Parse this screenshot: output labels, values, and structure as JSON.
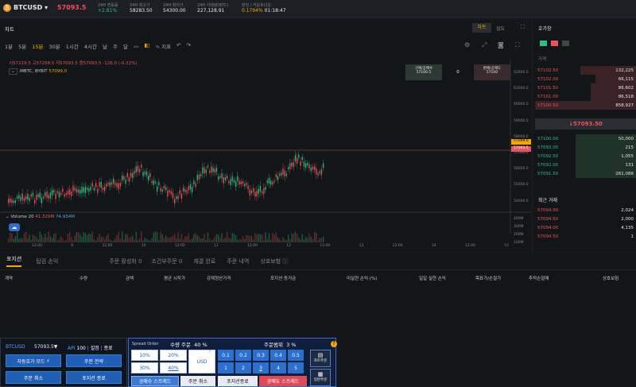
{
  "header": {
    "symbol": "BTCUSD",
    "price": "57093.5",
    "stats": [
      {
        "label": "24H 변동률",
        "value": "+2.81%"
      },
      {
        "label": "24H 최고가",
        "value": "58283.50"
      },
      {
        "label": "24H 최저가",
        "value": "54300.00"
      },
      {
        "label": "24H 거래량(BTC)",
        "value": "227,128.91"
      },
      {
        "label": "펀딩 / 카운트다운",
        "value": "0.1794%",
        "value2": "01:18:47"
      }
    ]
  },
  "chart_panel": {
    "title": "차트",
    "tabs": [
      "차트",
      "심도"
    ],
    "timeframes": [
      "1분",
      "5분",
      "15분",
      "30분",
      "1시간",
      "4시간",
      "날",
      "주",
      "달"
    ],
    "active_timeframe": "15분",
    "indicator_label": "지표",
    "ohlc": {
      "open": "시57219.5",
      "high": "고57258.5",
      "low": "저57093.5",
      "close": "종57093.5",
      "change": "-126.0 (-0.22%)"
    },
    "source": ".MBTC, BYBIT",
    "source_price": "57099.0",
    "buy_box": {
      "label": "구매/공매수",
      "value": "57100.5"
    },
    "mid_value": "0",
    "sell_box": {
      "label": "판매/공매도",
      "value": "57100"
    },
    "volume_label": "Volume 20",
    "volume_v1": "41.329M",
    "volume_v2": "74.934M",
    "price_ticks": [
      "62000.0",
      "61000.0",
      "60000.0",
      "59000.0",
      "58000.0",
      "57000.0",
      "56000.0",
      "55000.0",
      "54000.0"
    ],
    "current_price_tag": "57093.5",
    "mark_price_tag": "57099.0",
    "vol_ticks": [
      "400M",
      "300M",
      "200M",
      "100M"
    ],
    "time_ticks": [
      "12:00",
      "9",
      "12:00",
      "10",
      "12:00",
      "11",
      "12:00",
      "12",
      "12:00",
      "13",
      "12:00",
      "14",
      "12:00",
      "15"
    ]
  },
  "orderbook": {
    "title": "호가창",
    "col_price": "가격",
    "asks": [
      {
        "price": "57102.50",
        "qty": "132,225"
      },
      {
        "price": "57102.00",
        "qty": "66,115"
      },
      {
        "price": "57101.50",
        "qty": "86,602"
      },
      {
        "price": "57101.00",
        "qty": "86,518"
      },
      {
        "price": "57100.50",
        "qty": "858,927"
      }
    ],
    "mid_price": "↓57093.50",
    "bids": [
      {
        "price": "57100.00",
        "qty": "50,000"
      },
      {
        "price": "57093.00",
        "qty": "215"
      },
      {
        "price": "57092.50",
        "qty": "1,055"
      },
      {
        "price": "57092.00",
        "qty": "131"
      },
      {
        "price": "57091.50",
        "qty": "261,086"
      }
    ],
    "trades_title": "최근 거래",
    "trades": [
      {
        "price": "57094.00",
        "qty": "2,024"
      },
      {
        "price": "57094.50",
        "qty": "2,000"
      },
      {
        "price": "57094.00",
        "qty": "4,135"
      },
      {
        "price": "57094.50",
        "qty": "1"
      }
    ]
  },
  "positions": {
    "tabs": [
      "포지션",
      "탑검 손익",
      "주문 활성화 0",
      "조건부주문 0",
      "체결 완료",
      "주문 내역",
      "상호보험"
    ],
    "columns": [
      "계약",
      "수량",
      "금액",
      "평균 시작가",
      "강제청산가격",
      "포지션 증거금",
      "미실현 손익 (%)",
      "일일 실현 손익",
      "목표가/손절가",
      "추적손절매",
      "상호보험"
    ]
  },
  "quick_panel": {
    "symbol": "BTCUSD",
    "price": "57093.5▼",
    "api_label": "API",
    "api_value": "100",
    "settings": "설정",
    "close": "종료",
    "buttons": [
      "자동호가 모드",
      "주문 전략",
      "주문 취소",
      "포지션 종료"
    ]
  },
  "spread_panel": {
    "title": "Spread Order",
    "qty_label": "수량 주문",
    "qty_pct": "40 %",
    "range_label": "주문범위",
    "range_pct": "3 %",
    "pct_buttons": [
      "10%",
      "20%",
      "30%",
      "40%"
    ],
    "usd_label": "USD",
    "range_top": [
      "0.1",
      "0.2",
      "0.3",
      "0.4",
      "0.5"
    ],
    "range_bottom": [
      "1",
      "2",
      "3",
      "4",
      "5"
    ],
    "chart_order": "차트주문",
    "normal_order": "일반주문",
    "bottom_buttons": [
      "공매수 스프레드",
      "주문 취소",
      "포지션종료",
      "공매도 스프레드"
    ]
  },
  "colors": {
    "up": "#2ebd85",
    "down": "#f0505a",
    "accent": "#f7a600",
    "blue": "#1f5fb6"
  }
}
